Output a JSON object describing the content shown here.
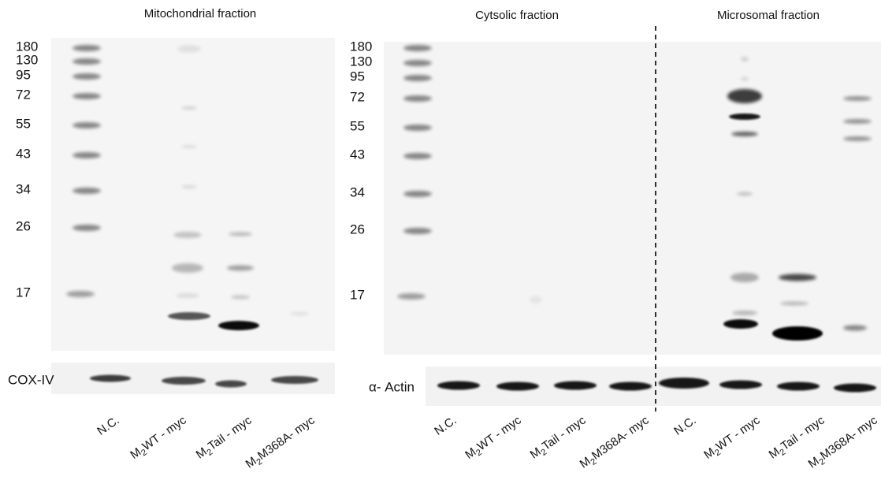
{
  "panels": [
    {
      "title": "Mitochondrial fraction",
      "markers": [
        "180",
        "130",
        "95",
        "72",
        "55",
        "43",
        "34",
        "26",
        "17"
      ],
      "loading_control": "COX-IV",
      "lanes": [
        {
          "rest": "N.C."
        },
        {
          "prefix": "M",
          "sub": "2",
          "rest": "WT - myc"
        },
        {
          "prefix": "M",
          "sub": "2",
          "rest": "Tail - myc"
        },
        {
          "prefix": "M",
          "sub": "2",
          "rest": "M368A- myc"
        }
      ]
    },
    {
      "title": "Cytsolic fraction",
      "markers": [
        "180",
        "130",
        "95",
        "72",
        "55",
        "43",
        "34",
        "26",
        "17"
      ],
      "loading_control": "α- Actin",
      "lanes": [
        {
          "rest": "N.C."
        },
        {
          "prefix": "M",
          "sub": "2",
          "rest": "WT - myc"
        },
        {
          "prefix": "M",
          "sub": "2",
          "rest": "Tail - myc"
        },
        {
          "prefix": "M",
          "sub": "2",
          "rest": "M368A- myc"
        }
      ]
    },
    {
      "title": "Microsomal fraction",
      "lanes": [
        {
          "rest": "N.C."
        },
        {
          "prefix": "M",
          "sub": "2",
          "rest": "WT - myc"
        },
        {
          "prefix": "M",
          "sub": "2",
          "rest": "Tail - myc"
        },
        {
          "prefix": "M",
          "sub": "2",
          "rest": "M368A- myc"
        }
      ]
    }
  ]
}
